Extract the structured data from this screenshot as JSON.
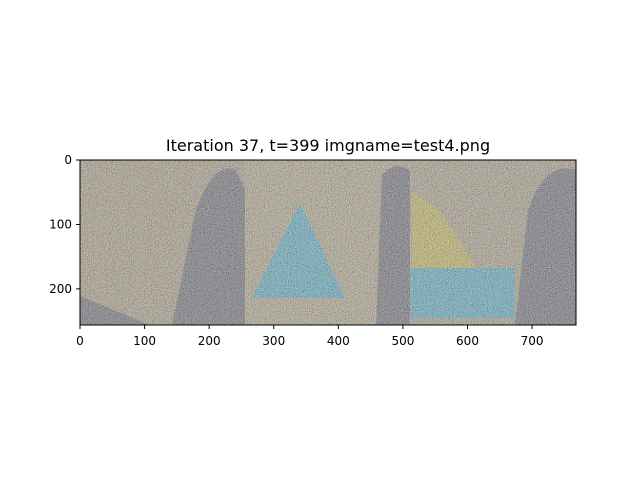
{
  "chart_data": {
    "type": "image",
    "title": "Iteration 37, t=399 imgname=test4.png",
    "xlabel": "",
    "ylabel": "",
    "xlim": [
      0,
      768
    ],
    "ylim": [
      256,
      0
    ],
    "x_ticks": [
      0,
      100,
      200,
      300,
      400,
      500,
      600,
      700
    ],
    "y_ticks": [
      0,
      100,
      200
    ],
    "panels": [
      {
        "x": [
          0,
          256
        ],
        "content": "noisy image, grey-brown background with a darker curved shape on the right and a dark triangle bottom-left"
      },
      {
        "x": [
          256,
          512
        ],
        "content": "noisy image, large cyan-blue triangular shape in the centre on a tan background"
      },
      {
        "x": [
          512,
          768
        ],
        "content": "noisy image, yellow and cyan triangle top-left, horizontal cyan/yellow bands below, dark curved shape on the right"
      }
    ],
    "grid": false,
    "legend": "none"
  },
  "colors": {
    "panel1_base": "#a89878",
    "panel2_base": "#b0a27e",
    "panel3_base": "#a89a7c",
    "cyan_shape": "#3fa8c8",
    "dark_shape": "#5a5a66",
    "yellow_shape": "#c8b640"
  }
}
